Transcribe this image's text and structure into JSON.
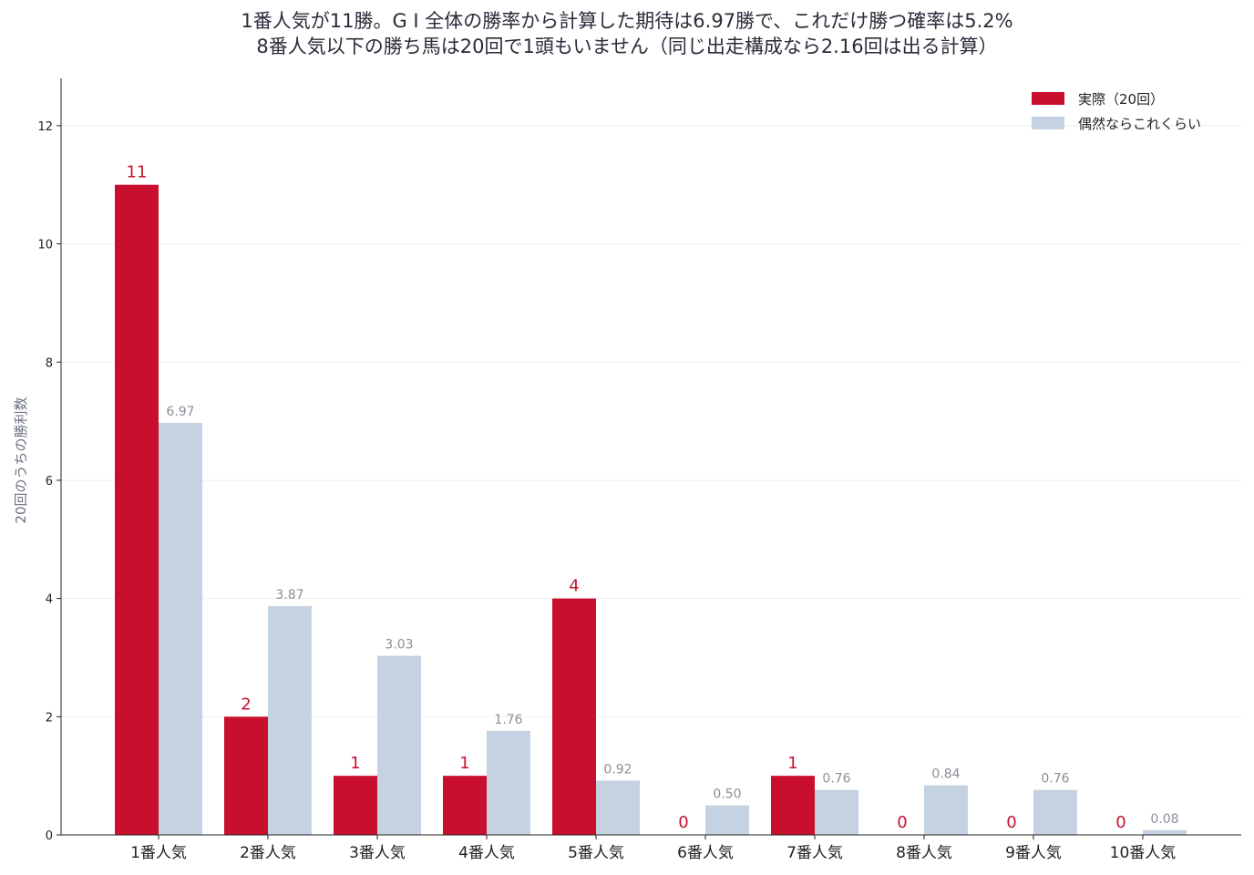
{
  "title_line1": "1番人気が11勝。G I 全体の勝率から計算した期待は6.97勝で、これだけ勝つ確率は5.2%",
  "title_line2": "8番人気以下の勝ち馬は20回で1頭もいません（同じ出走構成なら2.16回は出る計算）",
  "chart_data": {
    "type": "bar",
    "title": "1番人気が11勝。G I 全体の勝率から計算した期待は6.97勝で、これだけ勝つ確率は5.2%\n8番人気以下の勝ち馬は20回で1頭もいません（同じ出走構成なら2.16回は出る計算）",
    "xlabel": "",
    "ylabel": "20回のうちの勝利数",
    "ylim": [
      0,
      12.8
    ],
    "yticks": [
      0,
      2,
      4,
      6,
      8,
      10,
      12
    ],
    "grid": "horizontal",
    "legend_position": "top-right",
    "categories": [
      "1番人気",
      "2番人気",
      "3番人気",
      "4番人気",
      "5番人気",
      "6番人気",
      "7番人気",
      "8番人気",
      "9番人気",
      "10番人気"
    ],
    "series": [
      {
        "name": "実際（20回）",
        "color": "#c8102e",
        "values": [
          11,
          2,
          1,
          1,
          4,
          0,
          1,
          0,
          0,
          0
        ],
        "labels": [
          "11",
          "2",
          "1",
          "1",
          "4",
          "0",
          "1",
          "0",
          "0",
          "0"
        ]
      },
      {
        "name": "偶然ならこれくらい",
        "color": "#c5d2e2",
        "values": [
          6.97,
          3.87,
          3.03,
          1.76,
          0.92,
          0.5,
          0.76,
          0.84,
          0.76,
          0.08
        ],
        "labels": [
          "6.97",
          "3.87",
          "3.03",
          "1.76",
          "0.92",
          "0.50",
          "0.76",
          "0.84",
          "0.76",
          "0.08"
        ]
      }
    ]
  }
}
